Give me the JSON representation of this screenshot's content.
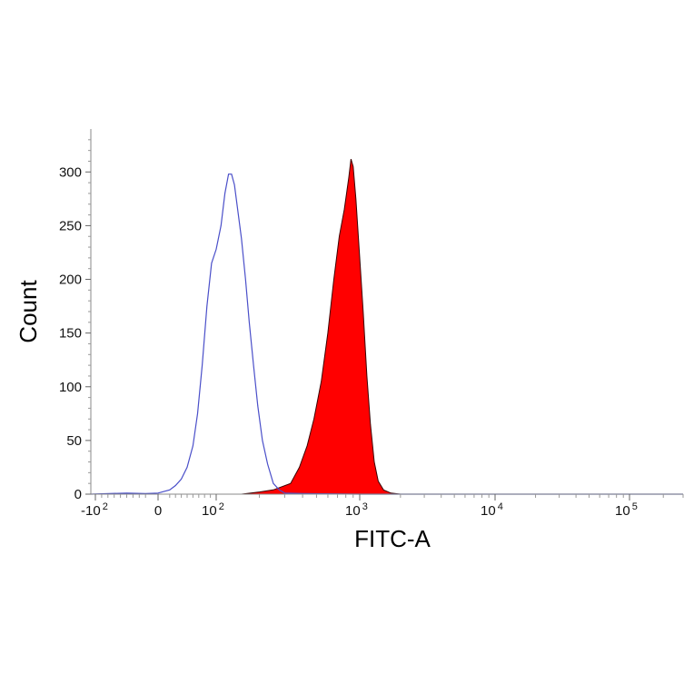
{
  "chart_data": {
    "type": "area",
    "xlabel": "FITC-A",
    "ylabel": "Count",
    "x_scale": "biexponential",
    "ylim": [
      0,
      340
    ],
    "y_ticks": [
      {
        "value": 0,
        "label": "0"
      },
      {
        "value": 50,
        "label": "50"
      },
      {
        "value": 100,
        "label": "100"
      },
      {
        "value": 150,
        "label": "150"
      },
      {
        "value": 200,
        "label": "200"
      },
      {
        "value": 250,
        "label": "250"
      },
      {
        "value": 300,
        "label": "300"
      }
    ],
    "x_ticks": [
      {
        "value": -100,
        "base": "-10",
        "exp": "2"
      },
      {
        "value": 0,
        "base": "0",
        "exp": ""
      },
      {
        "value": 100,
        "base": "10",
        "exp": "2"
      },
      {
        "value": 1000,
        "base": "10",
        "exp": "3"
      },
      {
        "value": 10000,
        "base": "10",
        "exp": "4"
      },
      {
        "value": 100000,
        "base": "10",
        "exp": "5"
      }
    ],
    "grid": false,
    "legend": "none",
    "series": [
      {
        "style": "outline",
        "color": "#4a4fc9",
        "points": [
          [
            -150,
            0
          ],
          [
            -50,
            1
          ],
          [
            -20,
            0.5
          ],
          [
            0,
            1
          ],
          [
            20,
            4
          ],
          [
            30,
            8
          ],
          [
            40,
            14
          ],
          [
            50,
            25
          ],
          [
            60,
            45
          ],
          [
            68,
            75
          ],
          [
            76,
            120
          ],
          [
            84,
            175
          ],
          [
            92,
            215
          ],
          [
            100,
            228
          ],
          [
            108,
            250
          ],
          [
            115,
            280
          ],
          [
            122,
            298
          ],
          [
            128,
            298
          ],
          [
            134,
            288
          ],
          [
            142,
            262
          ],
          [
            150,
            238
          ],
          [
            160,
            200
          ],
          [
            170,
            160
          ],
          [
            182,
            120
          ],
          [
            195,
            82
          ],
          [
            210,
            50
          ],
          [
            228,
            28
          ],
          [
            250,
            10
          ],
          [
            275,
            4
          ],
          [
            300,
            1
          ],
          [
            400,
            0.5
          ],
          [
            1000,
            0
          ],
          [
            2000,
            0
          ],
          [
            10000,
            0
          ],
          [
            100000,
            0
          ],
          [
            300000,
            0
          ]
        ]
      },
      {
        "style": "filled",
        "color": "#ff0000",
        "points": [
          [
            -150,
            0
          ],
          [
            150,
            0
          ],
          [
            200,
            2
          ],
          [
            250,
            4
          ],
          [
            330,
            10
          ],
          [
            380,
            25
          ],
          [
            430,
            45
          ],
          [
            480,
            70
          ],
          [
            540,
            105
          ],
          [
            600,
            150
          ],
          [
            660,
            200
          ],
          [
            720,
            240
          ],
          [
            780,
            265
          ],
          [
            840,
            295
          ],
          [
            870,
            312
          ],
          [
            900,
            305
          ],
          [
            940,
            275
          ],
          [
            1000,
            220
          ],
          [
            1060,
            170
          ],
          [
            1130,
            110
          ],
          [
            1200,
            65
          ],
          [
            1280,
            30
          ],
          [
            1370,
            12
          ],
          [
            1500,
            4
          ],
          [
            1700,
            1
          ],
          [
            2000,
            0
          ],
          [
            10000,
            0
          ],
          [
            100000,
            0
          ],
          [
            300000,
            0
          ]
        ]
      }
    ]
  }
}
